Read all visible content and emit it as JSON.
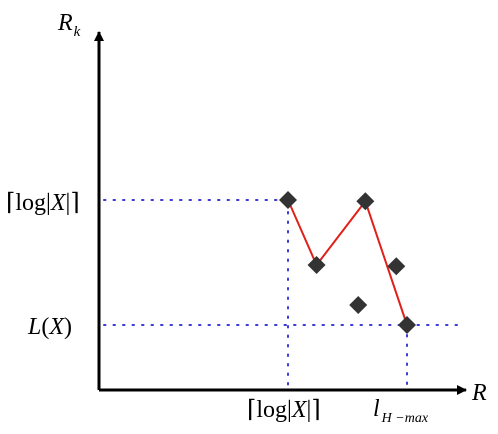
{
  "chart_data": {
    "type": "scatter",
    "axes": {
      "x": {
        "label_main": "R"
      },
      "y": {
        "label_main": "R",
        "label_sub": "k"
      }
    },
    "reference_levels": {
      "y_upper": {
        "label_pre": "⌈log",
        "label_bar1": "|",
        "label_var": "X",
        "label_bar2": "|",
        "label_post": "⌉"
      },
      "y_lower": {
        "label_fn": "L",
        "label_open": "(",
        "label_var": "X",
        "label_close": ")"
      },
      "x_left": {
        "label_pre": "⌈log",
        "label_bar1": "|",
        "label_var": "X",
        "label_bar2": "|",
        "label_post": "⌉"
      },
      "x_right": {
        "label_main": "l",
        "label_sub": "H −max"
      }
    },
    "points": [
      {
        "x": 0.0,
        "y": 1.0,
        "on_frontier": true
      },
      {
        "x": 0.24,
        "y": 0.48,
        "on_frontier": true
      },
      {
        "x": 0.59,
        "y": 0.16,
        "on_frontier": false
      },
      {
        "x": 0.65,
        "y": 0.99,
        "on_frontier": true
      },
      {
        "x": 0.91,
        "y": 0.47,
        "on_frontier": false
      },
      {
        "x": 1.0,
        "y": 0.0,
        "on_frontier": true
      }
    ],
    "grid": false,
    "legend": "none",
    "colors": {
      "axis": "#000000",
      "frontier": "#e0201a",
      "marker": "#333333",
      "guide": "#3a3ad8"
    }
  }
}
